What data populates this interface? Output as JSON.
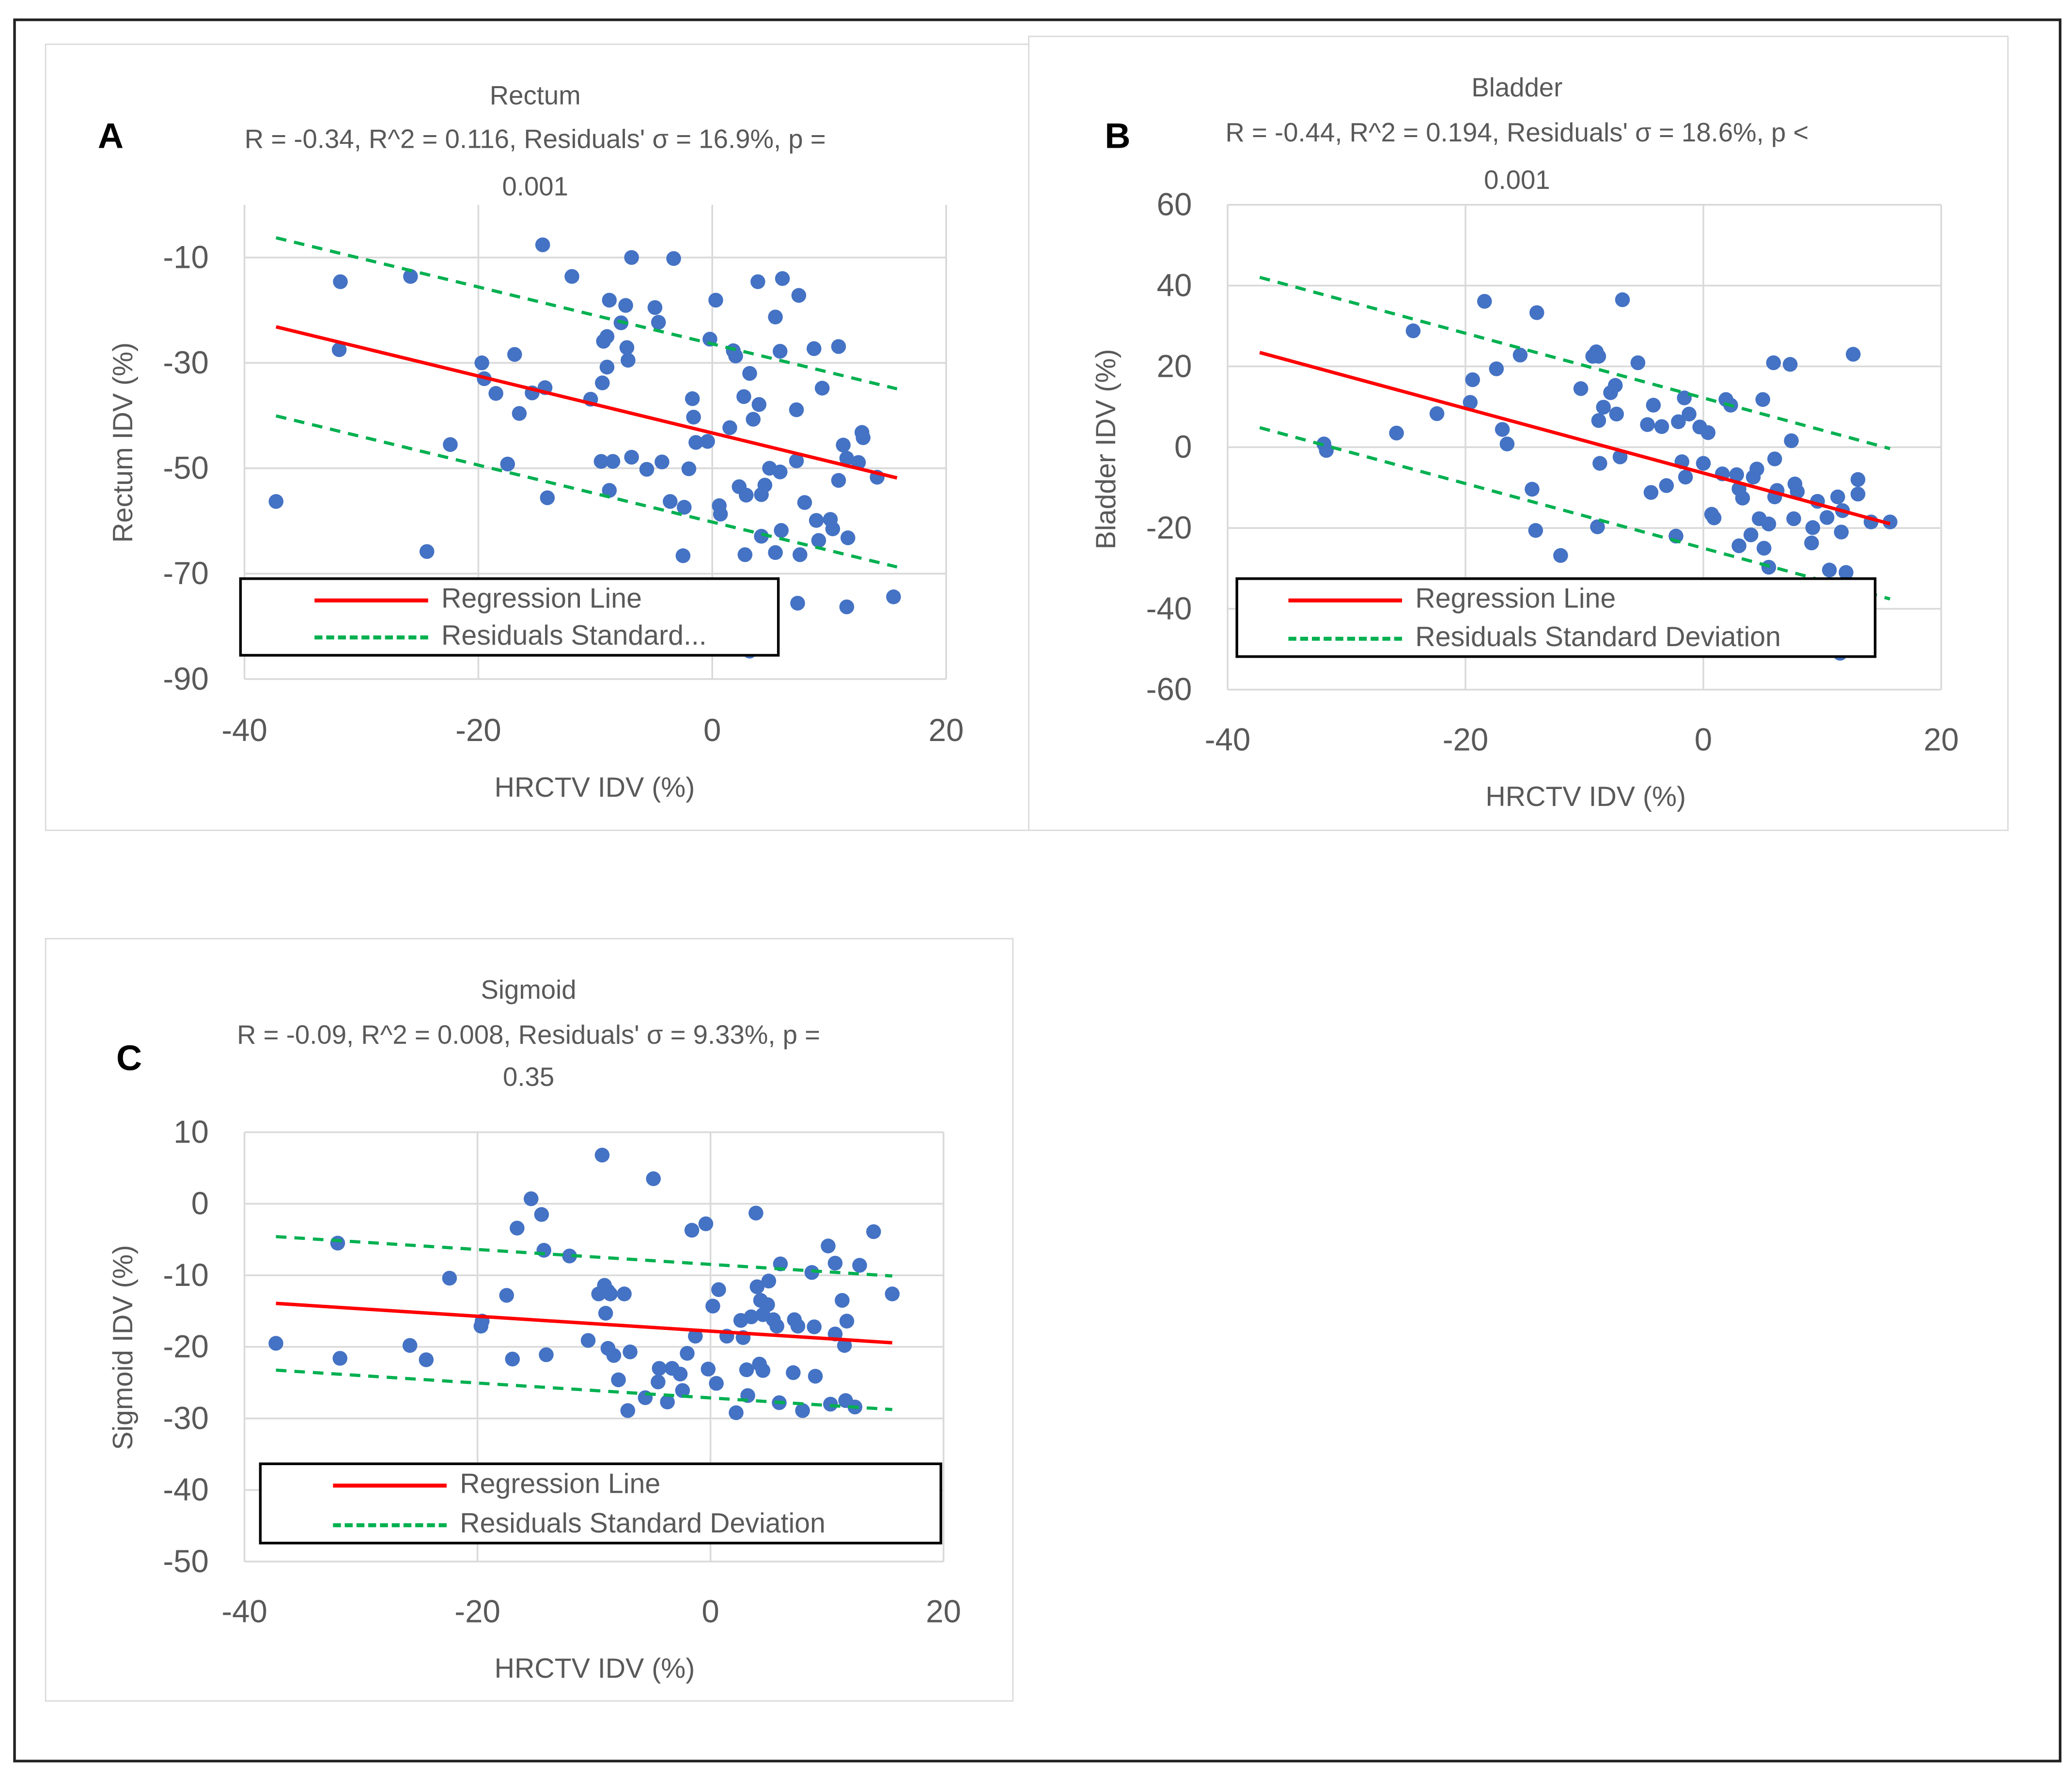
{
  "chart_data": [
    {
      "id": "A",
      "type": "scatter",
      "panel_label": "A",
      "title": "Rectum",
      "stats_line": "R = -0.34, R^2 = 0.116, Residuals' σ = 16.9%, p =",
      "stats_line2": "0.001",
      "xlabel": "HRCTV IDV (%)",
      "ylabel": "Rectum IDV (%)",
      "xlim": [
        -40,
        20
      ],
      "ylim": [
        -90,
        0
      ],
      "x_ticks": [
        -40,
        -20,
        0,
        20
      ],
      "y_ticks": [
        -90,
        -70,
        -50,
        -30,
        -10
      ],
      "grid": true,
      "legend": {
        "position": "bottom-left",
        "entries": [
          "Regression Line",
          "Residuals Standard..."
        ]
      },
      "regression": {
        "x_range": [
          -37.3,
          15.8
        ],
        "slope": -0.54,
        "intercept": -43.3,
        "sigma": 16.9
      },
      "points": [
        [
          -37.3,
          -56.3
        ],
        [
          -31.8,
          -14.6
        ],
        [
          -31.9,
          -27.5
        ],
        [
          -25.8,
          -13.6
        ],
        [
          -24.4,
          -65.8
        ],
        [
          -22.4,
          -45.5
        ],
        [
          -19.7,
          -30
        ],
        [
          -19.5,
          -33
        ],
        [
          -18.5,
          -35.8
        ],
        [
          -17.5,
          -49.2
        ],
        [
          -16.9,
          -28.4
        ],
        [
          -16.5,
          -39.6
        ],
        [
          -15.4,
          -35.7
        ],
        [
          -14.5,
          -7.6
        ],
        [
          -14.3,
          -34.7
        ],
        [
          -14.1,
          -55.6
        ],
        [
          -12.0,
          -13.6
        ],
        [
          -10.4,
          -36.9
        ],
        [
          -9.5,
          -48.7
        ],
        [
          -9.4,
          -33.8
        ],
        [
          -9.3,
          -25.9
        ],
        [
          -9.0,
          -25.0
        ],
        [
          -9.0,
          -30.8
        ],
        [
          -8.8,
          -18.1
        ],
        [
          -8.8,
          -54.2
        ],
        [
          -8.5,
          -48.7
        ],
        [
          -7.8,
          -22.4
        ],
        [
          -7.4,
          -19.1
        ],
        [
          -7.3,
          -27.1
        ],
        [
          -7.2,
          -29.5
        ],
        [
          -6.9,
          -10
        ],
        [
          -6.9,
          -47.9
        ],
        [
          -5.6,
          -50.2
        ],
        [
          -4.9,
          -19.5
        ],
        [
          -4.6,
          -22.3
        ],
        [
          -4.3,
          -48.8
        ],
        [
          -3.6,
          -56.3
        ],
        [
          -3.3,
          -10.2
        ],
        [
          -2.5,
          -66.6
        ],
        [
          -2.4,
          -57.4
        ],
        [
          -2.0,
          -50.1
        ],
        [
          -1.7,
          -36.8
        ],
        [
          -1.6,
          -40.3
        ],
        [
          -1.4,
          -45.1
        ],
        [
          -0.4,
          -44.9
        ],
        [
          -0.2,
          -25.5
        ],
        [
          0.3,
          -18.1
        ],
        [
          0.6,
          -57.1
        ],
        [
          0.7,
          -58.7
        ],
        [
          1.5,
          -42.3
        ],
        [
          1.8,
          -27.7
        ],
        [
          2.0,
          -28.7
        ],
        [
          2.3,
          -53.5
        ],
        [
          2.7,
          -36.4
        ],
        [
          2.8,
          -66.4
        ],
        [
          2.9,
          -55.1
        ],
        [
          3.2,
          -32.0
        ],
        [
          3.5,
          -40.7
        ],
        [
          3.9,
          -14.6
        ],
        [
          4.0,
          -37.9
        ],
        [
          4.2,
          -62.9
        ],
        [
          4.2,
          -55.0
        ],
        [
          4.5,
          -53.2
        ],
        [
          4.9,
          -50
        ],
        [
          5.4,
          -21.3
        ],
        [
          5.4,
          -66
        ],
        [
          5.8,
          -50.7
        ],
        [
          5.8,
          -27.8
        ],
        [
          5.9,
          -61.8
        ],
        [
          6.0,
          -14.0
        ],
        [
          7.2,
          -38.9
        ],
        [
          7.2,
          -48.6
        ],
        [
          7.3,
          -75.6
        ],
        [
          7.4,
          -17.2
        ],
        [
          7.5,
          -66.4
        ],
        [
          7.9,
          -56.5
        ],
        [
          8.7,
          -27.3
        ],
        [
          8.9,
          -59.9
        ],
        [
          9.1,
          -63.7
        ],
        [
          9.4,
          -34.8
        ],
        [
          10.1,
          -59.7
        ],
        [
          10.3,
          -61.5
        ],
        [
          10.8,
          -26.9
        ],
        [
          10.8,
          -52.3
        ],
        [
          11.2,
          -45.6
        ],
        [
          11.5,
          -48.1
        ],
        [
          11.5,
          -76.3
        ],
        [
          11.6,
          -63.2
        ],
        [
          12.5,
          -48.9
        ],
        [
          12.8,
          -43.2
        ],
        [
          12.9,
          -44.2
        ],
        [
          14.1,
          -51.7
        ],
        [
          15.5,
          -74.4
        ],
        [
          3.2,
          -84.7
        ]
      ]
    },
    {
      "id": "B",
      "type": "scatter",
      "panel_label": "B",
      "title": "Bladder",
      "stats_line": "R = -0.44, R^2 = 0.194, Residuals' σ = 18.6%, p <",
      "stats_line2": "0.001",
      "xlabel": "HRCTV IDV (%)",
      "ylabel": "Bladder IDV (%)",
      "xlim": [
        -40,
        20
      ],
      "ylim": [
        -60,
        60
      ],
      "x_ticks": [
        -40,
        -20,
        0,
        20
      ],
      "y_ticks": [
        -60,
        -40,
        -20,
        0,
        20,
        40,
        60
      ],
      "grid": true,
      "legend": {
        "position": "bottom",
        "entries": [
          "Regression Line",
          "Residuals Standard Deviation"
        ]
      },
      "regression": {
        "x_range": [
          -37.3,
          15.7
        ],
        "slope": -0.8,
        "intercept": -6.4,
        "sigma": 18.6
      },
      "points": [
        [
          -31.9,
          0.8
        ],
        [
          -31.7,
          -0.8
        ],
        [
          -25.8,
          3.5
        ],
        [
          -24.4,
          28.8
        ],
        [
          -22.4,
          8.3
        ],
        [
          -19.6,
          11.1
        ],
        [
          -19.4,
          16.7
        ],
        [
          -18.4,
          36.1
        ],
        [
          -17.4,
          19.4
        ],
        [
          -16.9,
          4.4
        ],
        [
          -16.5,
          0.8
        ],
        [
          -15.4,
          22.8
        ],
        [
          -14.4,
          -10.4
        ],
        [
          -14.1,
          -20.6
        ],
        [
          -14.0,
          33.3
        ],
        [
          -12.0,
          -26.8
        ],
        [
          -10.3,
          14.5
        ],
        [
          -9.3,
          22.5
        ],
        [
          -9.0,
          23.6
        ],
        [
          -8.8,
          22.5
        ],
        [
          -8.9,
          -19.7
        ],
        [
          -8.8,
          6.6
        ],
        [
          -8.7,
          -4.0
        ],
        [
          -8.4,
          9.9
        ],
        [
          -7.8,
          13.5
        ],
        [
          -7.4,
          15.3
        ],
        [
          -7.3,
          8.2
        ],
        [
          -7.0,
          -2.4
        ],
        [
          -6.8,
          36.5
        ],
        [
          -5.5,
          20.9
        ],
        [
          -4.7,
          5.6
        ],
        [
          -4.4,
          -11.2
        ],
        [
          -4.2,
          10.4
        ],
        [
          -3.5,
          5.1
        ],
        [
          -3.1,
          -9.5
        ],
        [
          -2.3,
          -22
        ],
        [
          -2.1,
          6.3
        ],
        [
          -1.8,
          -3.6
        ],
        [
          -1.6,
          12.2
        ],
        [
          -1.5,
          -7.4
        ],
        [
          -1.2,
          8.2
        ],
        [
          -0.3,
          5.0
        ],
        [
          0,
          -4.0
        ],
        [
          0.4,
          3.6
        ],
        [
          0.7,
          -16.6
        ],
        [
          0.9,
          -17.5
        ],
        [
          1.6,
          -6.6
        ],
        [
          1.9,
          11.8
        ],
        [
          2.3,
          10.4
        ],
        [
          2.8,
          -6.8
        ],
        [
          3.0,
          -24.4
        ],
        [
          3.0,
          -10.3
        ],
        [
          3.3,
          -12.6
        ],
        [
          4.0,
          -21.7
        ],
        [
          4.2,
          -7.4
        ],
        [
          4.5,
          -5.4
        ],
        [
          4.7,
          -17.7
        ],
        [
          5.0,
          11.8
        ],
        [
          5.1,
          -25
        ],
        [
          5.5,
          -19
        ],
        [
          5.5,
          -29.7
        ],
        [
          5.9,
          20.9
        ],
        [
          6.0,
          -2.9
        ],
        [
          6.0,
          -12.3
        ],
        [
          6.2,
          -10.7
        ],
        [
          7.3,
          20.5
        ],
        [
          7.4,
          1.6
        ],
        [
          7.6,
          -17.7
        ],
        [
          7.7,
          -9.1
        ],
        [
          7.9,
          -11
        ],
        [
          9.1,
          -23.7
        ],
        [
          9.2,
          -19.9
        ],
        [
          9.6,
          -13.4
        ],
        [
          10.4,
          -17.4
        ],
        [
          10.6,
          -30.4
        ],
        [
          11.3,
          -12.3
        ],
        [
          11.6,
          -21
        ],
        [
          11.7,
          -15.7
        ],
        [
          12.0,
          -31
        ],
        [
          12.6,
          23
        ],
        [
          13.0,
          -8
        ],
        [
          13.0,
          -11.6
        ],
        [
          14.1,
          -18.5
        ],
        [
          15.7,
          -18.5
        ],
        [
          11.5,
          -51
        ]
      ]
    },
    {
      "id": "C",
      "type": "scatter",
      "panel_label": "C",
      "title": "Sigmoid",
      "stats_line": "R = -0.09, R^2 = 0.008, Residuals' σ = 9.33%, p =",
      "stats_line2": "0.35",
      "xlabel": "HRCTV IDV (%)",
      "ylabel": "Sigmoid IDV (%)",
      "xlim": [
        -40,
        20
      ],
      "ylim": [
        -50,
        10
      ],
      "x_ticks": [
        -40,
        -20,
        0,
        20
      ],
      "y_ticks": [
        -50,
        -40,
        -30,
        -20,
        -10,
        0,
        10
      ],
      "grid": true,
      "legend": {
        "position": "bottom",
        "entries": [
          "Regression Line",
          "Residuals Standard Deviation"
        ]
      },
      "regression": {
        "x_range": [
          -37.3,
          15.6
        ],
        "slope": -0.104,
        "intercept": -17.8,
        "sigma": 9.33
      },
      "points": [
        [
          -37.3,
          -19.5
        ],
        [
          -32.0,
          -5.5
        ],
        [
          -31.8,
          -21.6
        ],
        [
          -25.8,
          -19.8
        ],
        [
          -24.4,
          -21.8
        ],
        [
          -22.4,
          -10.4
        ],
        [
          -19.7,
          -17.1
        ],
        [
          -19.6,
          -16.4
        ],
        [
          -17.5,
          -12.8
        ],
        [
          -17.0,
          -21.7
        ],
        [
          -16.6,
          -3.4
        ],
        [
          -15.4,
          0.7
        ],
        [
          -14.5,
          -1.5
        ],
        [
          -14.3,
          -6.5
        ],
        [
          -14.1,
          -21.1
        ],
        [
          -12.1,
          -7.3
        ],
        [
          -10.5,
          -19.1
        ],
        [
          -9.6,
          -12.6
        ],
        [
          -9.3,
          6.8
        ],
        [
          -9.1,
          -11.4
        ],
        [
          -9.0,
          -15.3
        ],
        [
          -8.8,
          -12.2
        ],
        [
          -8.8,
          -20.2
        ],
        [
          -8.6,
          -12.6
        ],
        [
          -8.3,
          -21.2
        ],
        [
          -7.9,
          -24.6
        ],
        [
          -7.4,
          -12.6
        ],
        [
          -7.1,
          -28.9
        ],
        [
          -6.9,
          -20.7
        ],
        [
          -5.6,
          -27.1
        ],
        [
          -4.9,
          3.5
        ],
        [
          -4.5,
          -24.9
        ],
        [
          -4.4,
          -23.0
        ],
        [
          -3.7,
          -27.7
        ],
        [
          -3.3,
          -23
        ],
        [
          -2.6,
          -23.8
        ],
        [
          -2.4,
          -26.1
        ],
        [
          -2.0,
          -20.9
        ],
        [
          -1.6,
          -3.7
        ],
        [
          -1.3,
          -18.5
        ],
        [
          -0.4,
          -2.8
        ],
        [
          -0.2,
          -23.1
        ],
        [
          0.2,
          -14.3
        ],
        [
          0.5,
          -25.1
        ],
        [
          0.7,
          -12.0
        ],
        [
          1.4,
          -18.5
        ],
        [
          2.2,
          -29.2
        ],
        [
          2.6,
          -16.3
        ],
        [
          2.8,
          -18.7
        ],
        [
          3.1,
          -23.2
        ],
        [
          3.2,
          -26.8
        ],
        [
          3.5,
          -15.8
        ],
        [
          3.9,
          -1.3
        ],
        [
          4.0,
          -11.6
        ],
        [
          4.2,
          -22.4
        ],
        [
          4.3,
          -13.5
        ],
        [
          4.5,
          -15.5
        ],
        [
          4.5,
          -23.3
        ],
        [
          4.9,
          -14.1
        ],
        [
          5.0,
          -10.8
        ],
        [
          5.4,
          -16.2
        ],
        [
          5.7,
          -17.1
        ],
        [
          5.9,
          -27.8
        ],
        [
          6.0,
          -8.4
        ],
        [
          7.1,
          -23.6
        ],
        [
          7.2,
          -16.2
        ],
        [
          7.5,
          -17.1
        ],
        [
          7.9,
          -28.9
        ],
        [
          8.7,
          -9.6
        ],
        [
          8.9,
          -17.2
        ],
        [
          9.0,
          -24.1
        ],
        [
          10.1,
          -5.9
        ],
        [
          10.3,
          -28.0
        ],
        [
          10.7,
          -8.3
        ],
        [
          10.7,
          -18.2
        ],
        [
          11.3,
          -13.5
        ],
        [
          11.5,
          -19.8
        ],
        [
          11.6,
          -27.5
        ],
        [
          11.7,
          -16.4
        ],
        [
          12.4,
          -28.4
        ],
        [
          12.8,
          -8.6
        ],
        [
          14.0,
          -3.9
        ],
        [
          15.6,
          -12.6
        ]
      ]
    }
  ],
  "colors": {
    "points": "#4472C4",
    "regression": "#FF0000",
    "residual_sd": "#00B050",
    "text": "#595959",
    "grid": "#D9D9D9"
  }
}
